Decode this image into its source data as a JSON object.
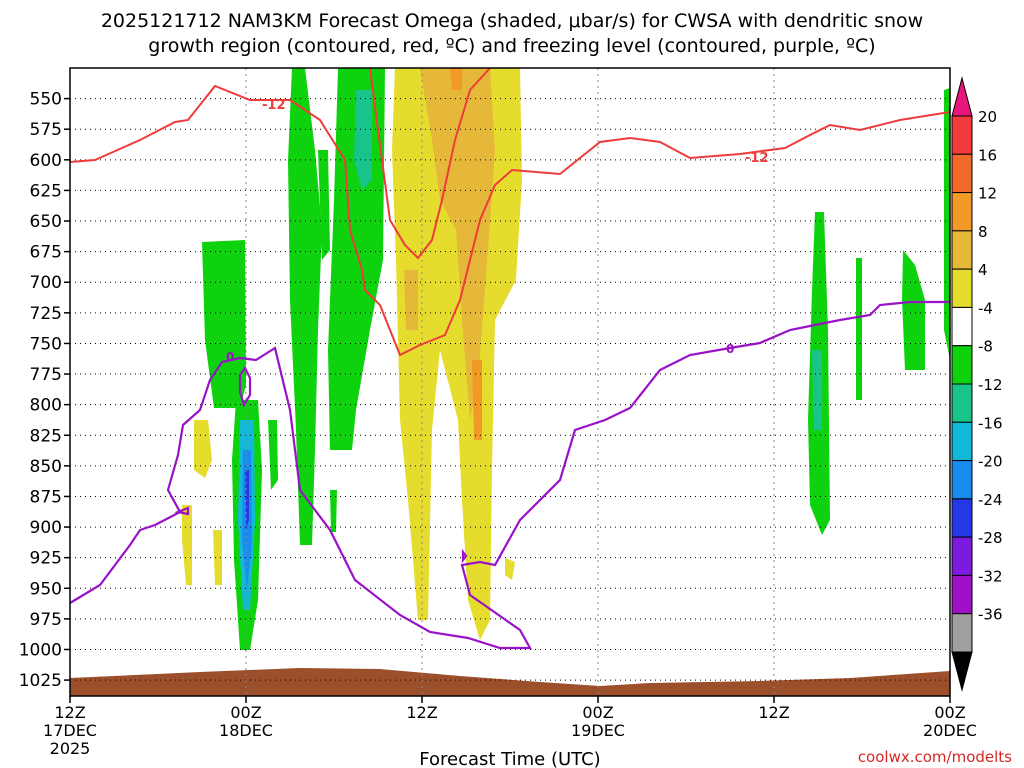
{
  "chart_data": {
    "type": "heatmap",
    "title_line1": "2025121712 NAM3KM Forecast Omega (shaded, μbar/s) for CWSA with dendritic snow",
    "title_line2": "growth region (contoured, red, ºC) and freezing level (contoured, purple, ºC)",
    "xlabel": "Forecast Time (UTC)",
    "credit": "coolwx.com/modelts",
    "x_range_hours": [
      0,
      60
    ],
    "y_range_hpa": [
      525,
      1038
    ],
    "pressure_ticks": [
      550,
      575,
      600,
      625,
      650,
      675,
      700,
      725,
      750,
      775,
      800,
      825,
      850,
      875,
      900,
      925,
      950,
      975,
      1000,
      1025
    ],
    "time_ticks": [
      {
        "hour": 0,
        "line1": "12Z",
        "line2": "17DEC",
        "line3": "2025"
      },
      {
        "hour": 12,
        "line1": "00Z",
        "line2": "18DEC",
        "line3": ""
      },
      {
        "hour": 24,
        "line1": "12Z",
        "line2": "",
        "line3": ""
      },
      {
        "hour": 36,
        "line1": "00Z",
        "line2": "19DEC",
        "line3": ""
      },
      {
        "hour": 48,
        "line1": "12Z",
        "line2": "",
        "line3": ""
      },
      {
        "hour": 60,
        "line1": "00Z",
        "line2": "20DEC",
        "line3": ""
      }
    ],
    "colorbar": {
      "labels": [
        "20",
        "16",
        "12",
        "8",
        "4",
        "-4",
        "-8",
        "-12",
        "-16",
        "-20",
        "-24",
        "-28",
        "-32",
        "-36"
      ],
      "colors": [
        "#e8167a",
        "#f23a3a",
        "#f26a2a",
        "#f29a26",
        "#e6b83a",
        "#e6dc2e",
        "#ffffff",
        "#0ed20e",
        "#18c48a",
        "#12b8d8",
        "#1a8cf0",
        "#2438e6",
        "#7c1ae0",
        "#a010c8",
        "#a0a0a0",
        "#000000"
      ]
    },
    "contours": [
      {
        "name": "dendritic -12C",
        "color": "#ee3b3b",
        "label": "-12"
      },
      {
        "name": "freezing level 0C",
        "color": "#9a12c8",
        "label": "0"
      }
    ],
    "omega_regions": [
      {
        "name": "upward-motion band 18DEC 00Z",
        "level": "-4"
      },
      {
        "name": "strong upward core 18DEC 00Z",
        "level": "-24"
      },
      {
        "name": "sinking band 18DEC 12Z-18Z",
        "level": "8"
      },
      {
        "name": "upward band 19DEC 12Z-18Z",
        "level": "-4"
      }
    ]
  }
}
